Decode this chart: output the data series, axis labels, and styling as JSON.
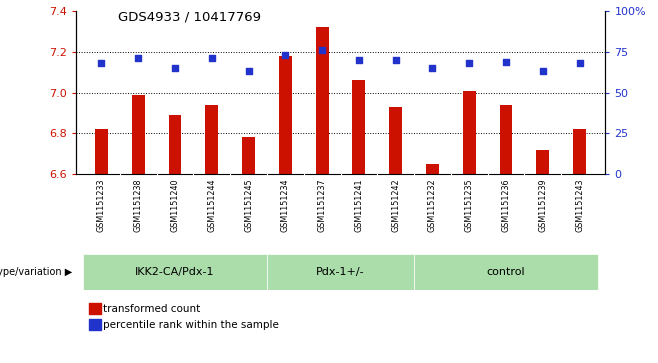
{
  "title": "GDS4933 / 10417769",
  "samples": [
    "GSM1151233",
    "GSM1151238",
    "GSM1151240",
    "GSM1151244",
    "GSM1151245",
    "GSM1151234",
    "GSM1151237",
    "GSM1151241",
    "GSM1151242",
    "GSM1151232",
    "GSM1151235",
    "GSM1151236",
    "GSM1151239",
    "GSM1151243"
  ],
  "red_values": [
    6.82,
    6.99,
    6.89,
    6.94,
    6.78,
    7.18,
    7.32,
    7.06,
    6.93,
    6.65,
    7.01,
    6.94,
    6.72,
    6.82
  ],
  "blue_values": [
    68,
    71,
    65,
    71,
    63,
    73,
    76,
    70,
    70,
    65,
    68,
    69,
    63,
    68
  ],
  "groups": [
    {
      "label": "IKK2-CA/Pdx-1",
      "start": 0,
      "end": 5
    },
    {
      "label": "Pdx-1+/-",
      "start": 5,
      "end": 9
    },
    {
      "label": "control",
      "start": 9,
      "end": 14
    }
  ],
  "ylim_left": [
    6.6,
    7.4
  ],
  "ylim_right": [
    0,
    100
  ],
  "yticks_left": [
    6.6,
    6.8,
    7.0,
    7.2,
    7.4
  ],
  "yticks_right": [
    0,
    25,
    50,
    75,
    100
  ],
  "ytick_labels_right": [
    "0",
    "25",
    "50",
    "75",
    "100%"
  ],
  "grid_values": [
    6.8,
    7.0,
    7.2
  ],
  "bar_color": "#cc1100",
  "dot_color": "#2233cc",
  "gray_bg": "#d8d8d8",
  "group_color": "#aaddaa",
  "xlabel_genotype": "genotype/variation",
  "legend_red": "transformed count",
  "legend_blue": "percentile rank within the sample",
  "bar_width": 0.35
}
